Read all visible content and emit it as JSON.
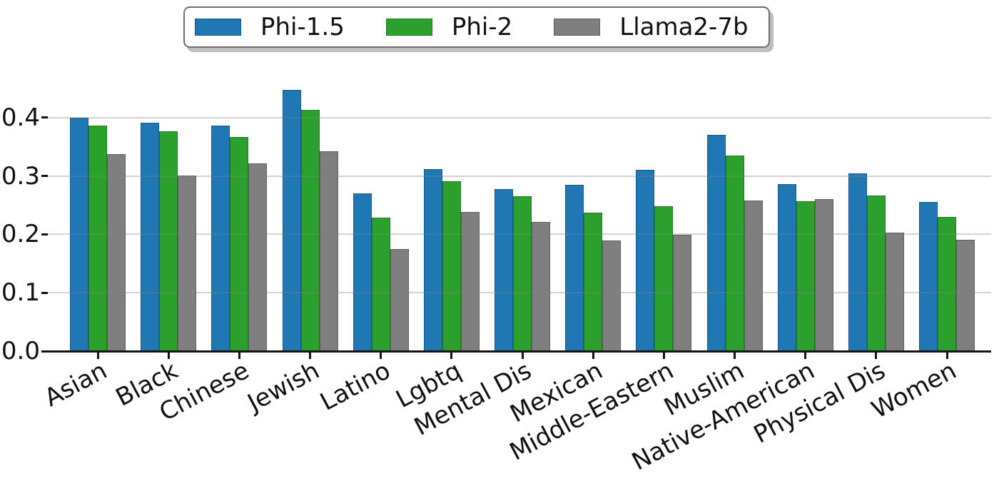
{
  "chart_data": {
    "type": "bar",
    "title": "",
    "xlabel": "",
    "ylabel": "",
    "categories": [
      "Asian",
      "Black",
      "Chinese",
      "Jewish",
      "Latino",
      "Lgbtq",
      "Mental Dis",
      "Mexican",
      "Middle-Eastern",
      "Muslim",
      "Native-American",
      "Physical Dis",
      "Women"
    ],
    "series": [
      {
        "name": "Phi-1.5",
        "color": "#1f77b4",
        "edge_color": "#14598a",
        "values": [
          0.4,
          0.391,
          0.386,
          0.447,
          0.27,
          0.312,
          0.278,
          0.285,
          0.31,
          0.37,
          0.286,
          0.304,
          0.256
        ]
      },
      {
        "name": "Phi-2",
        "color": "#2ca02c",
        "edge_color": "#1d7a1d",
        "values": [
          0.386,
          0.376,
          0.367,
          0.413,
          0.228,
          0.291,
          0.265,
          0.237,
          0.248,
          0.335,
          0.257,
          0.267,
          0.23
        ]
      },
      {
        "name": "Llama2-7b",
        "color": "#7f7f7f",
        "edge_color": "#5d5d5d",
        "values": [
          0.338,
          0.301,
          0.322,
          0.342,
          0.175,
          0.238,
          0.221,
          0.189,
          0.199,
          0.258,
          0.261,
          0.203,
          0.191
        ]
      }
    ],
    "ylim": [
      0,
      0.46
    ],
    "yticks": [
      0.0,
      0.1,
      0.2,
      0.3,
      0.4
    ],
    "ytick_labels": [
      "0.0",
      "0.1",
      "0.2",
      "0.3",
      "0.4"
    ],
    "x_tick_rotation_deg": 30,
    "grid": "horizontal gridlines at y ticks, drawn over bars",
    "legend_position": "top center, horizontal, outside plot",
    "colors": {
      "background": "#ffffff",
      "axis": "#141414",
      "gridline": "rgba(130,130,130,0.34)",
      "text": "#111111"
    }
  }
}
